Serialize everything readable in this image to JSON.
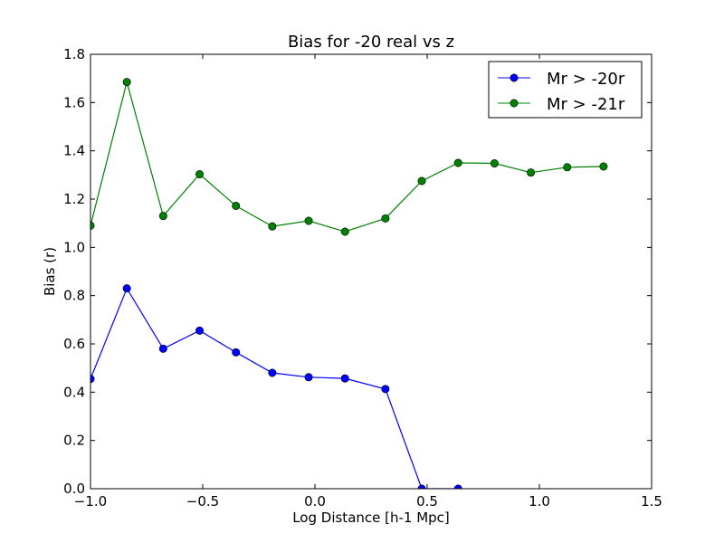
{
  "chart_data": {
    "type": "line",
    "title": "Bias for -20 real vs z",
    "xlabel": "Log Distance [h-1 Mpc]",
    "ylabel": "Bias (r)",
    "xlim": [
      -1.0,
      1.5
    ],
    "ylim": [
      0.0,
      1.8
    ],
    "xticks": [
      -1.0,
      -0.5,
      0.0,
      0.5,
      1.0,
      1.5
    ],
    "xtick_labels": [
      "−1.0",
      "−0.5",
      "0.0",
      "0.5",
      "1.0",
      "1.5"
    ],
    "yticks": [
      0.0,
      0.2,
      0.4,
      0.6,
      0.8,
      1.0,
      1.2,
      1.4,
      1.6,
      1.8
    ],
    "ytick_labels": [
      "0.0",
      "0.2",
      "0.4",
      "0.6",
      "0.8",
      "1.0",
      "1.2",
      "1.4",
      "1.6",
      "1.8"
    ],
    "grid": false,
    "legend_position": "top-right",
    "series": [
      {
        "name": "Mr > -20r",
        "color": "#0000ff",
        "x": [
          -1.0,
          -0.838,
          -0.676,
          -0.514,
          -0.352,
          -0.19,
          -0.028,
          0.134,
          0.314,
          0.476,
          0.638
        ],
        "y": [
          0.455,
          0.83,
          0.58,
          0.655,
          0.565,
          0.48,
          0.462,
          0.457,
          0.413,
          0.0,
          0.0
        ]
      },
      {
        "name": "Mr > -21r",
        "color": "#008000",
        "x": [
          -1.0,
          -0.838,
          -0.676,
          -0.514,
          -0.352,
          -0.19,
          -0.028,
          0.134,
          0.314,
          0.476,
          0.638,
          0.8,
          0.962,
          1.124,
          1.286
        ],
        "y": [
          1.09,
          1.685,
          1.13,
          1.303,
          1.172,
          1.087,
          1.11,
          1.065,
          1.12,
          1.275,
          1.35,
          1.348,
          1.31,
          1.332,
          1.335
        ]
      }
    ]
  }
}
